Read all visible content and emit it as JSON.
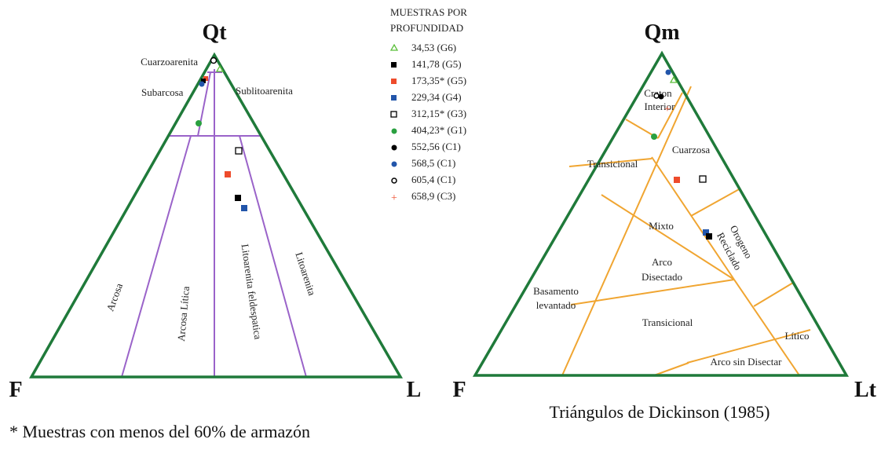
{
  "left": {
    "apex_top": "Qt",
    "apex_left": "F",
    "apex_right": "L",
    "fields": {
      "cuarzoarenita": "Cuarzoarenita",
      "subarcosa": "Subarcosa",
      "sublitoarenita": "Sublitoarenita",
      "arcosa": "Arcosa",
      "arcosa_litica": "Arcosa Lítica",
      "litoarenita_feldespatica": "Litoarenita feldespatica",
      "litoarenita": "Litoarenita"
    }
  },
  "right": {
    "apex_top": "Qm",
    "apex_left": "F",
    "apex_right": "Lt",
    "fields": {
      "craton": [
        "Craton",
        "Interior"
      ],
      "cuarzosa": "Cuarzosa",
      "transicional_top": "Transicional",
      "mixto": "Mixto",
      "orogeno": [
        "Orogeno",
        "Reciclado"
      ],
      "arco_disectado": [
        "Arco",
        "Disectado"
      ],
      "basamento": [
        "Basamento",
        "levantado"
      ],
      "transicional_bottom": "Transicional",
      "litico": "Lítico",
      "arco_sin_disectar": "Arco sin Disectar"
    },
    "caption": "Triángulos de Dickinson (1985)"
  },
  "legend": {
    "title": [
      "MUESTRAS POR",
      "PROFUNDIDAD"
    ],
    "entries": [
      "34,53 (G6)",
      "141,78 (G5)",
      "173,35* (G5)",
      "229,34 (G4)",
      "312,15* (G3)",
      "404,23* (G1)",
      "552,56 (C1)",
      "568,5 (C1)",
      "605,4 (C1)",
      "658,9 (C3)"
    ]
  },
  "footnote": "* Muestras con menos del 60% de armazón"
}
